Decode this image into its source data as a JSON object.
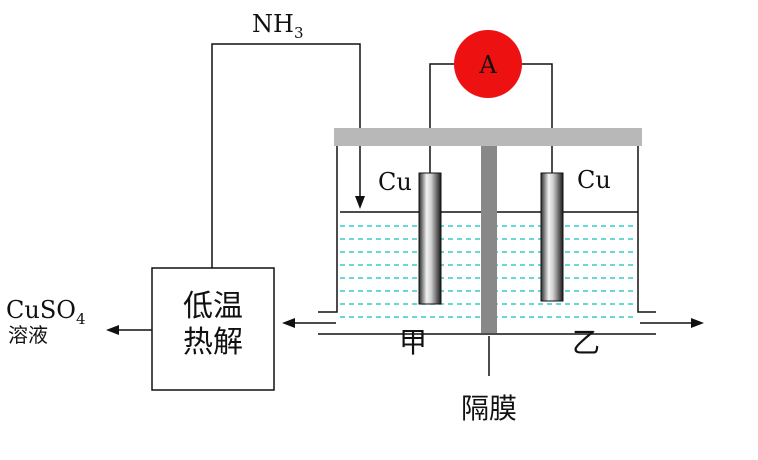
{
  "gas_label": "NH",
  "gas_subscript": "3",
  "ammeter_label": "A",
  "electrode_left_label": "Cu",
  "electrode_right_label": "Cu",
  "unit_line1": "低温",
  "unit_line2": "热解",
  "product_label": "CuSO",
  "product_subscript": "4",
  "product_sub_label": "溶液",
  "left_compartment_label": "甲",
  "right_compartment_label": "乙",
  "membrane_label": "隔膜",
  "colors": {
    "ammeter_fill": "#ee1111",
    "solution_dash": "#33cccc",
    "lid": "#b8b8b8",
    "membrane": "#888888"
  }
}
